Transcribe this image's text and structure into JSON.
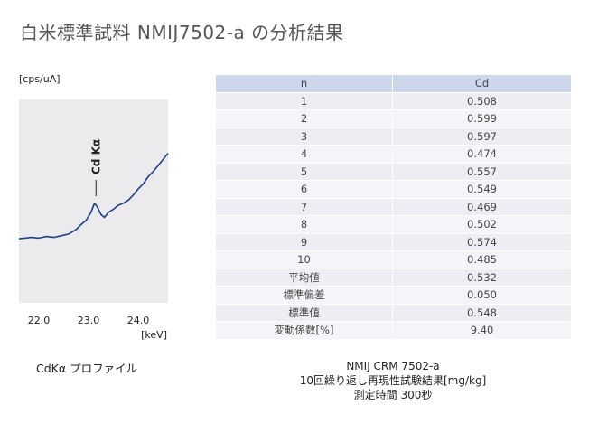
{
  "title": "白米標準試料 NMIJ7502-a の分析結果",
  "chart_data": {
    "type": "line",
    "title": "CdKα プロファイル",
    "ylabel": "[cps/uA]",
    "xlabel": "[keV]",
    "xlim": [
      21.6,
      24.6
    ],
    "ylim": [
      0,
      1
    ],
    "xticks": [
      22.0,
      23.0,
      24.0
    ],
    "xtick_labels": [
      "22.0",
      "23.0",
      "24.0"
    ],
    "grid": false,
    "legend": "none",
    "annotations": [
      {
        "text": "Cd Kα",
        "x": 23.15
      }
    ],
    "series": [
      {
        "name": "CdKα profile",
        "color": "#1e3f8a",
        "x": [
          21.6,
          21.72,
          21.85,
          22.0,
          22.15,
          22.3,
          22.45,
          22.6,
          22.75,
          22.85,
          22.95,
          23.05,
          23.12,
          23.18,
          23.25,
          23.32,
          23.4,
          23.5,
          23.6,
          23.7,
          23.8,
          23.9,
          24.0,
          24.1,
          24.2,
          24.3,
          24.4,
          24.5,
          24.6
        ],
        "values": [
          0.315,
          0.318,
          0.322,
          0.318,
          0.326,
          0.322,
          0.33,
          0.338,
          0.36,
          0.385,
          0.405,
          0.445,
          0.49,
          0.47,
          0.435,
          0.42,
          0.445,
          0.46,
          0.48,
          0.49,
          0.505,
          0.53,
          0.56,
          0.585,
          0.62,
          0.645,
          0.675,
          0.705,
          0.735
        ]
      }
    ]
  },
  "table": {
    "headers": [
      "n",
      "Cd"
    ],
    "rows": [
      [
        "1",
        "0.508"
      ],
      [
        "2",
        "0.599"
      ],
      [
        "3",
        "0.597"
      ],
      [
        "4",
        "0.474"
      ],
      [
        "5",
        "0.557"
      ],
      [
        "6",
        "0.549"
      ],
      [
        "7",
        "0.469"
      ],
      [
        "8",
        "0.502"
      ],
      [
        "9",
        "0.574"
      ],
      [
        "10",
        "0.485"
      ],
      [
        "平均値",
        "0.532"
      ],
      [
        "標準偏差",
        "0.050"
      ],
      [
        "標準値",
        "0.548"
      ],
      [
        "変動係数[%]",
        "9.40"
      ]
    ]
  },
  "table_caption": [
    "NMIJ CRM 7502-a",
    "10回繰り返し再現性試験結果[mg/kg]",
    "測定時間 300秒"
  ],
  "colors": {
    "plot_bg": "#ebebee",
    "line": "#1e3f8a",
    "table_header": "#cdd7ec",
    "row_odd": "#eceef3",
    "row_even": "#f4f5f8"
  }
}
